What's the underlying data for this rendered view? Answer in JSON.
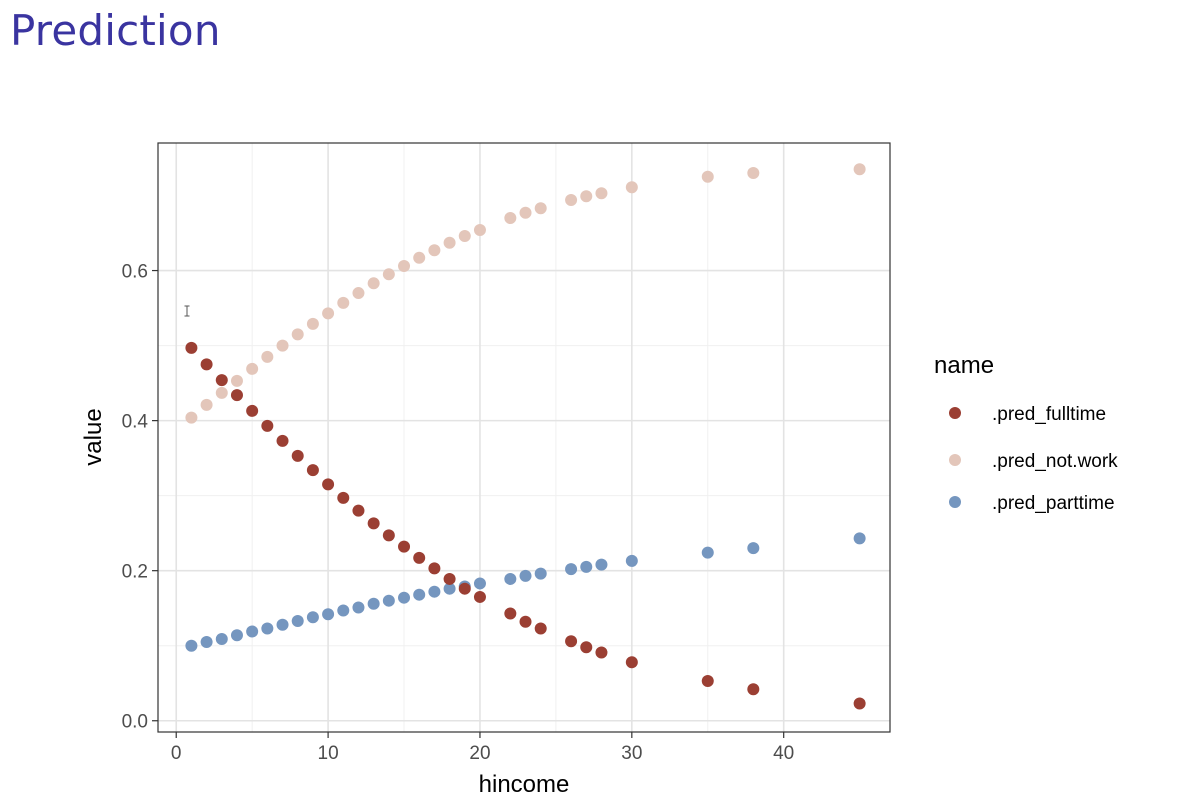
{
  "page": {
    "title": "Prediction"
  },
  "chart_data": {
    "type": "scatter",
    "xlabel": "hincome",
    "ylabel": "value",
    "xlim": [
      -1.2,
      47
    ],
    "ylim": [
      -0.015,
      0.77
    ],
    "xticks": [
      0,
      10,
      20,
      30,
      40
    ],
    "xtick_labels": [
      "0",
      "10",
      "20",
      "30",
      "40"
    ],
    "yticks": [
      0.0,
      0.2,
      0.4,
      0.6
    ],
    "ytick_labels": [
      "0.0",
      "0.2",
      "0.4",
      "0.6"
    ],
    "grid": true,
    "legend": {
      "title": "name",
      "position": "right"
    },
    "x": [
      1,
      2,
      3,
      4,
      5,
      6,
      7,
      8,
      9,
      10,
      11,
      12,
      13,
      14,
      15,
      16,
      17,
      18,
      19,
      20,
      22,
      23,
      24,
      26,
      27,
      28,
      30,
      35,
      38,
      45
    ],
    "series": [
      {
        "name": ".pred_fulltime",
        "color": "#9b3f33",
        "values": [
          0.497,
          0.475,
          0.454,
          0.434,
          0.413,
          0.393,
          0.373,
          0.353,
          0.334,
          0.315,
          0.297,
          0.28,
          0.263,
          0.247,
          0.232,
          0.217,
          0.203,
          0.189,
          0.176,
          0.165,
          0.143,
          0.132,
          0.123,
          0.106,
          0.098,
          0.091,
          0.078,
          0.053,
          0.042,
          0.023
        ]
      },
      {
        "name": ".pred_not.work",
        "color": "#e3c6ba",
        "values": [
          0.404,
          0.421,
          0.437,
          0.453,
          0.469,
          0.485,
          0.5,
          0.515,
          0.529,
          0.543,
          0.557,
          0.57,
          0.583,
          0.595,
          0.606,
          0.617,
          0.627,
          0.637,
          0.646,
          0.654,
          0.67,
          0.677,
          0.683,
          0.694,
          0.699,
          0.703,
          0.711,
          0.725,
          0.73,
          0.735
        ]
      },
      {
        "name": ".pred_parttime",
        "color": "#7596bf",
        "values": [
          0.1,
          0.105,
          0.109,
          0.114,
          0.119,
          0.123,
          0.128,
          0.133,
          0.138,
          0.142,
          0.147,
          0.151,
          0.156,
          0.16,
          0.164,
          0.168,
          0.172,
          0.176,
          0.179,
          0.183,
          0.189,
          0.193,
          0.196,
          0.202,
          0.205,
          0.208,
          0.213,
          0.224,
          0.23,
          0.243
        ]
      }
    ]
  }
}
